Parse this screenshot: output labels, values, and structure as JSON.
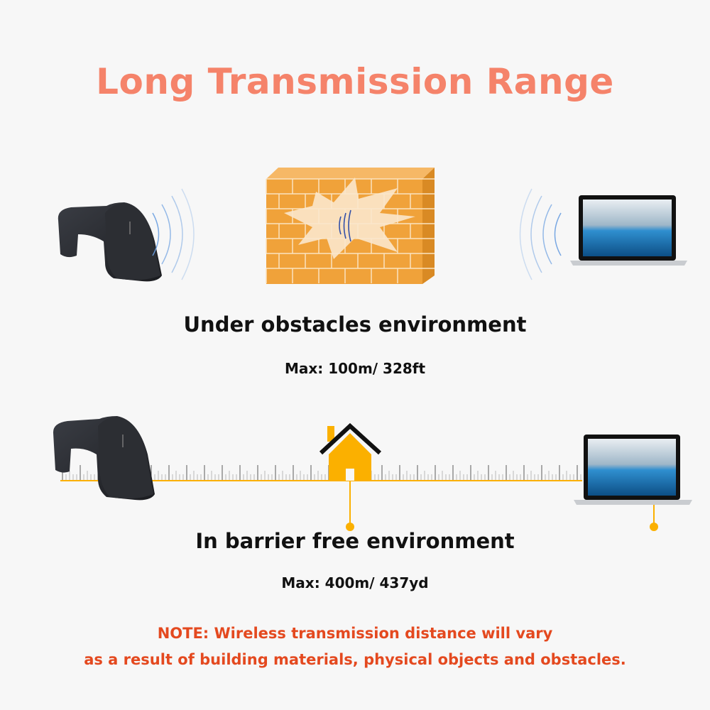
{
  "title": "Long  Transmission Range",
  "obstacles": {
    "heading": "Under obstacles environment",
    "max": "Max: 100m/ 328ft"
  },
  "barrier_free": {
    "heading": "In barrier free environment",
    "max": "Max: 400m/ 437yd"
  },
  "note": {
    "line1": "NOTE: Wireless transmission distance will vary",
    "line2": "as a result of building materials, physical objects and obstacles."
  },
  "colors": {
    "title": "#f5836a",
    "note": "#e4491f",
    "accent_orange": "#fbb000",
    "wall": "#f0a23a",
    "signal_wave": "#6a9ee0"
  },
  "icons": [
    "barcode-scanner-icon",
    "signal-wave-icon",
    "brick-wall-icon",
    "laptop-icon",
    "house-icon",
    "ruler-icon"
  ]
}
